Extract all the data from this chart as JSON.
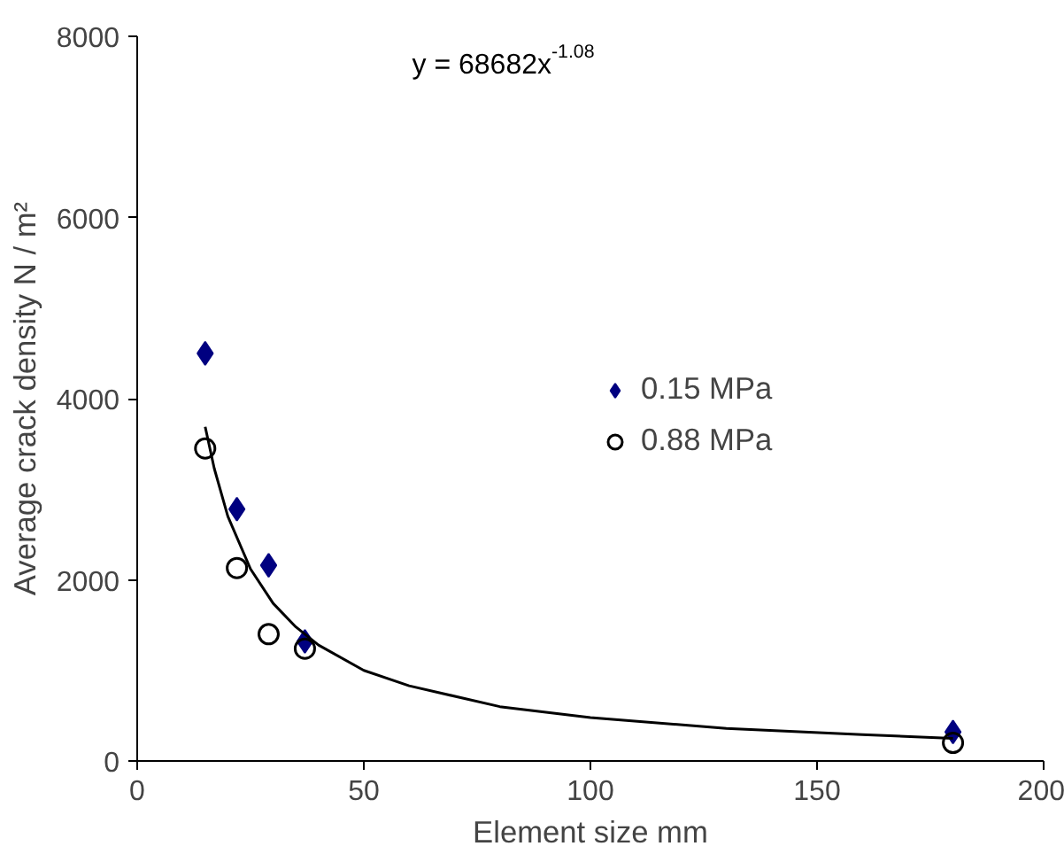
{
  "chart_data": {
    "type": "scatter",
    "xlabel": "Element size mm",
    "ylabel": "Average crack density N / m²",
    "xlim": [
      0,
      200
    ],
    "ylim": [
      0,
      8000
    ],
    "xticks": [
      0,
      50,
      100,
      150,
      200
    ],
    "yticks": [
      0,
      2000,
      4000,
      6000,
      8000
    ],
    "grid": false,
    "legend": "right",
    "annotations": [
      "y = 68682x$^{-1.08}$"
    ],
    "series": [
      {
        "name": "0.15 MPa",
        "color": "#000080",
        "marker": "diamond",
        "x": [
          15,
          22,
          29,
          37,
          180
        ],
        "values": [
          4500,
          2780,
          2160,
          1320,
          320
        ]
      },
      {
        "name": "0.88 MPa",
        "color": "#000000",
        "marker": "circle",
        "x": [
          15,
          22,
          29,
          37,
          180
        ],
        "values": [
          3450,
          2130,
          1400,
          1240,
          200
        ]
      },
      {
        "type": "line",
        "color": "#000000",
        "x": [
          15,
          17,
          20,
          25,
          30,
          35,
          40,
          50,
          60,
          80,
          100,
          130,
          160,
          180
        ],
        "values": [
          3690,
          3230,
          2700,
          2120,
          1740,
          1480,
          1280,
          1000,
          830,
          600,
          480,
          360,
          290,
          250
        ]
      }
    ]
  }
}
